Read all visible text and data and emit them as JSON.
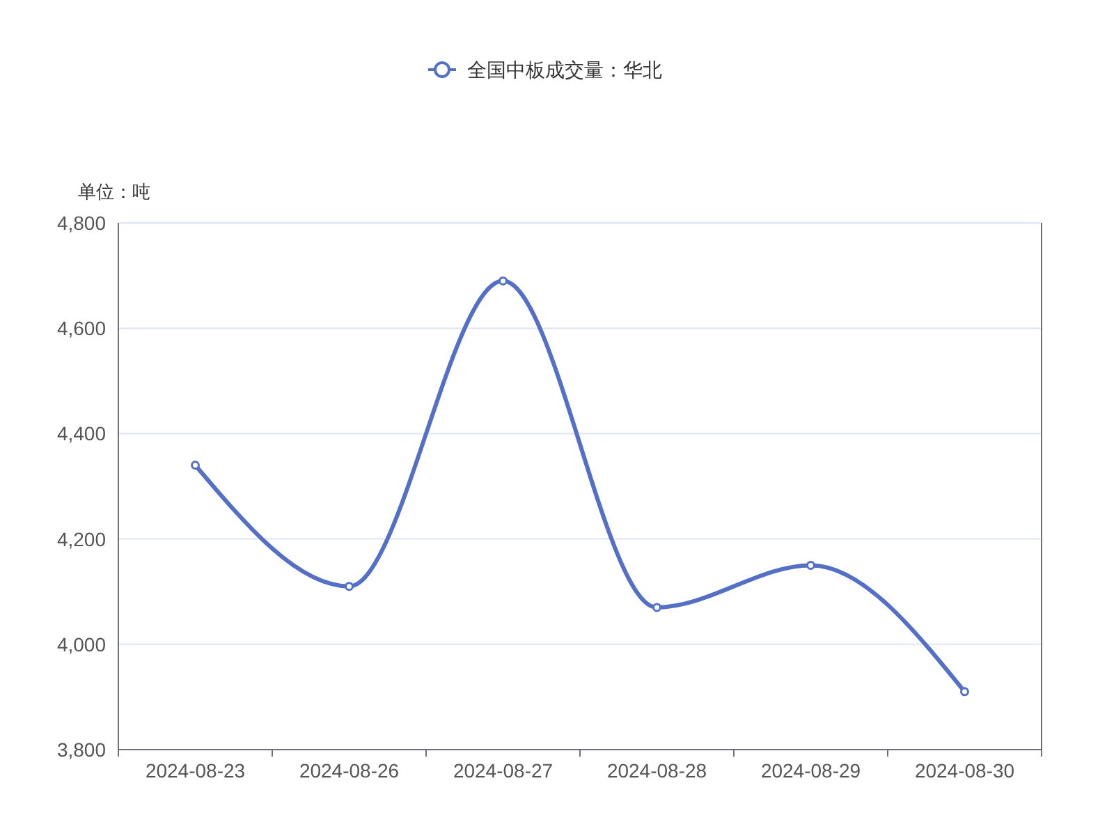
{
  "chart_data": {
    "type": "line",
    "ylabel": "单位：吨",
    "categories": [
      "2024-08-23",
      "2024-08-26",
      "2024-08-27",
      "2024-08-28",
      "2024-08-29",
      "2024-08-30"
    ],
    "series": [
      {
        "name": "全国中板成交量：华北",
        "color": "#5470c6",
        "values": [
          4340,
          4110,
          4690,
          4070,
          4150,
          3910
        ]
      }
    ],
    "ylim": [
      3800,
      4800
    ],
    "yticks": [
      {
        "value": 3800,
        "label": "3,800"
      },
      {
        "value": 4000,
        "label": "4,000"
      },
      {
        "value": 4200,
        "label": "4,200"
      },
      {
        "value": 4400,
        "label": "4,400"
      },
      {
        "value": 4600,
        "label": "4,600"
      },
      {
        "value": 4800,
        "label": "4,800"
      }
    ],
    "grid": "y",
    "legend": "top",
    "marker": "circle",
    "line_style": "solid"
  }
}
